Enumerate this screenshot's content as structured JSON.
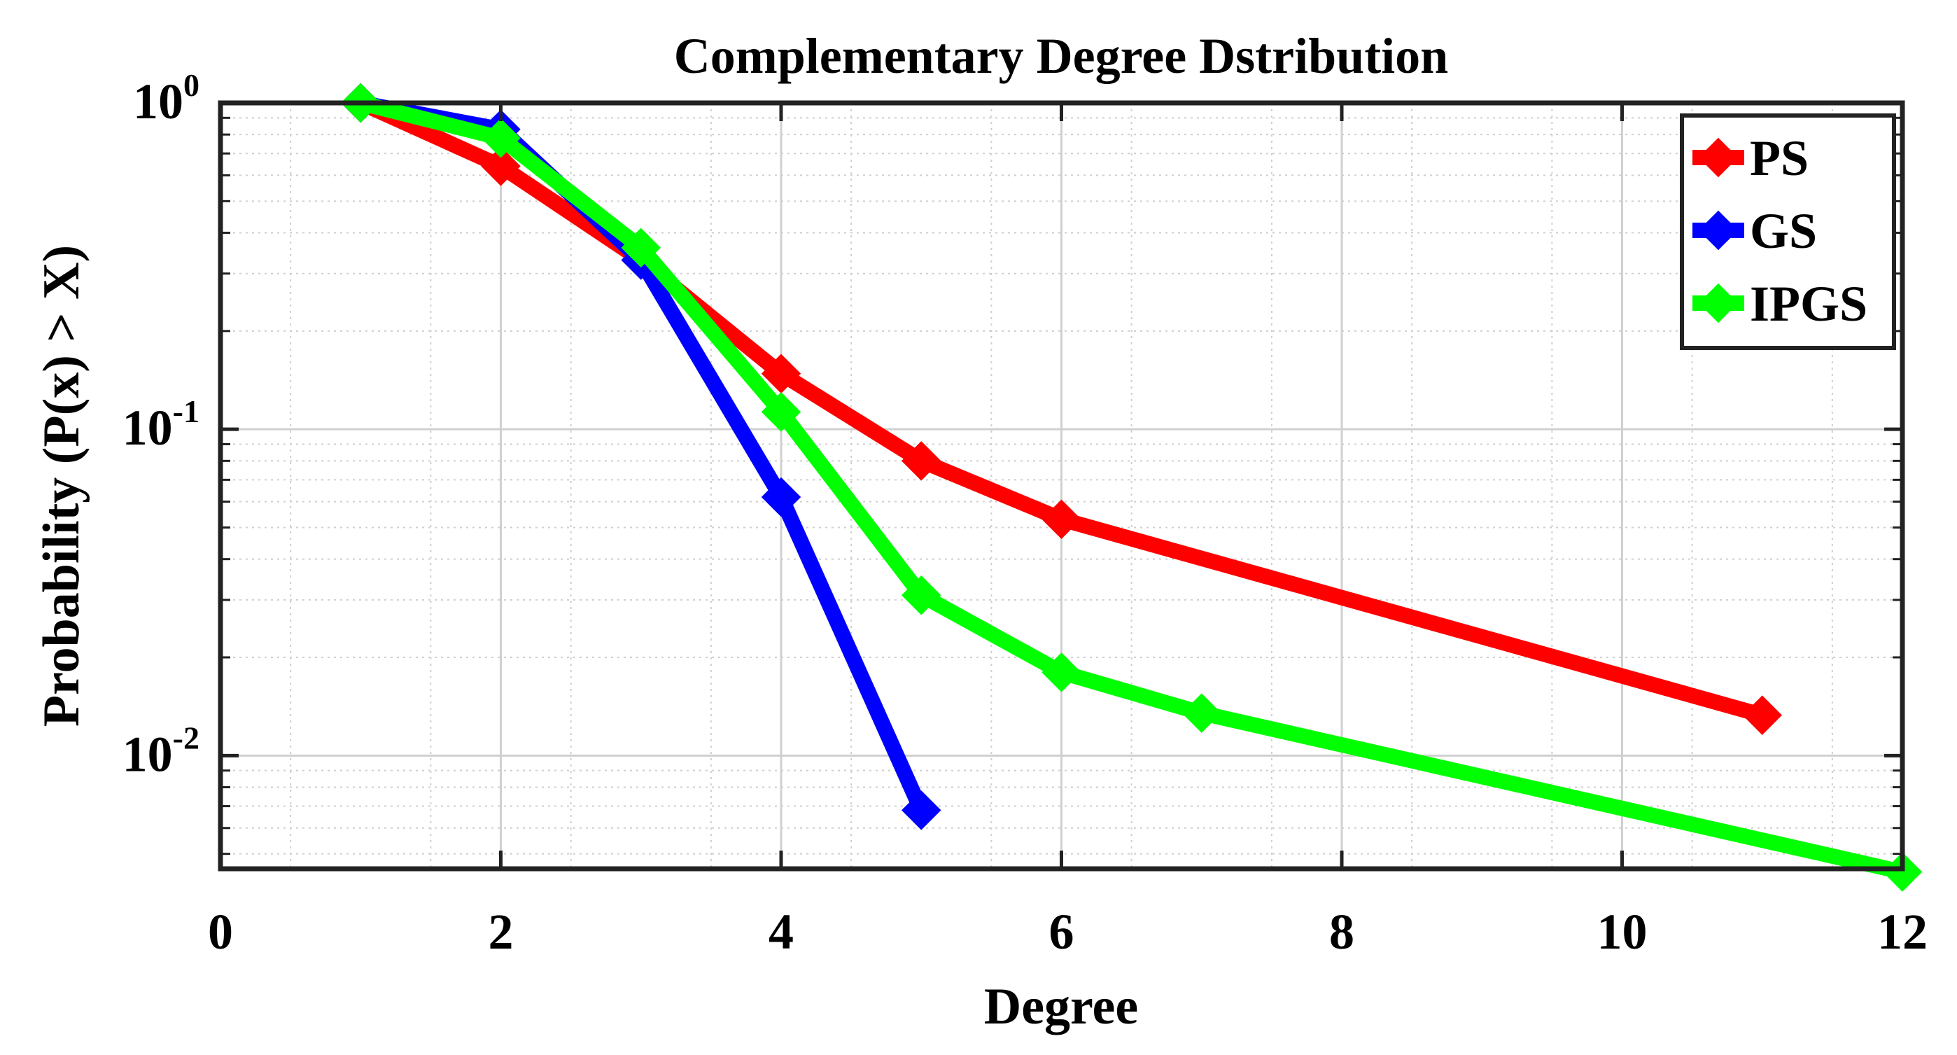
{
  "chart_data": {
    "type": "line",
    "title": "Complementary Degree Dstribution",
    "xlabel": "Degree",
    "ylabel": "Probability (P(x) > X)",
    "xlim": [
      0,
      12
    ],
    "ylim": [
      0.0045,
      1.0
    ],
    "yscale": "log",
    "grid": true,
    "minor_grid": true,
    "legend_position": "top-right",
    "x_ticks": [
      0,
      2,
      4,
      6,
      8,
      10,
      12
    ],
    "x_tick_labels": [
      "0",
      "2",
      "4",
      "6",
      "8",
      "10",
      "12"
    ],
    "y_ticks": [
      0.01,
      0.1,
      1
    ],
    "y_tick_labels": [
      {
        "base": "10",
        "exp": "-2"
      },
      {
        "base": "10",
        "exp": "-1"
      },
      {
        "base": "10",
        "exp": "0"
      }
    ],
    "series": [
      {
        "name": "PS",
        "color": "#ff0000",
        "x": [
          1,
          2,
          3,
          4,
          5,
          6,
          11
        ],
        "y": [
          1.0,
          0.64,
          0.33,
          0.148,
          0.08,
          0.053,
          0.0133
        ]
      },
      {
        "name": "GS",
        "color": "#0000ff",
        "x": [
          1,
          2,
          3,
          4,
          5
        ],
        "y": [
          1.0,
          0.83,
          0.33,
          0.062,
          0.0068
        ]
      },
      {
        "name": "IPGS",
        "color": "#00ff00",
        "x": [
          1,
          2,
          3,
          4,
          5,
          6,
          7,
          12
        ],
        "y": [
          1.0,
          0.78,
          0.36,
          0.113,
          0.031,
          0.018,
          0.0135,
          0.0044
        ]
      }
    ]
  }
}
